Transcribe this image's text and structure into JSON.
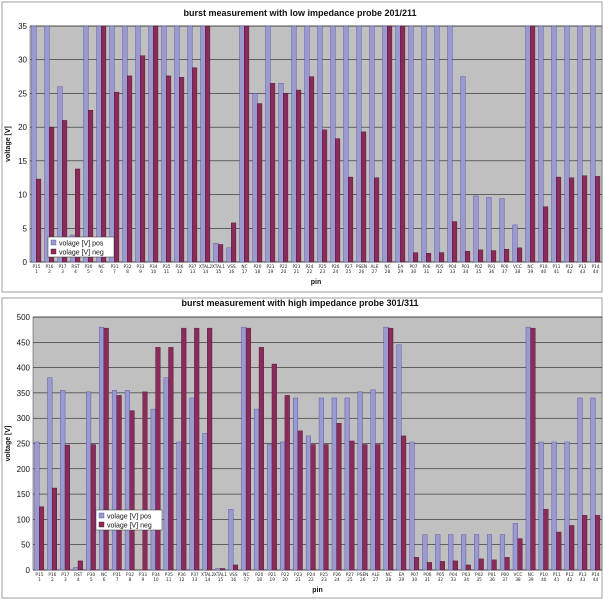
{
  "colors": {
    "pos": "#9a9ad0",
    "pos_edge": "#4a4a98",
    "neg": "#8a2c5a",
    "neg_edge": "#4a1030",
    "plot_bg": "#c0c0c0",
    "grid": "#000000"
  },
  "chart_data": [
    {
      "type": "bar",
      "title": "burst measurement with low impedance probe  201/211",
      "xlabel": "pin",
      "ylabel": "voltage [V]",
      "ylim": [
        0,
        35
      ],
      "yticks": [
        0,
        5,
        10,
        15,
        20,
        25,
        30,
        35
      ],
      "grid": true,
      "legend_position": "bottom-left",
      "categories": [
        [
          "P15",
          "1"
        ],
        [
          "P16",
          "2"
        ],
        [
          "P17",
          "3"
        ],
        [
          "RST",
          "4"
        ],
        [
          "P30",
          "5"
        ],
        [
          "NC",
          "6"
        ],
        [
          "P31",
          "7"
        ],
        [
          "P32",
          "8"
        ],
        [
          "P33",
          "9"
        ],
        [
          "P34",
          "10"
        ],
        [
          "P35",
          "11"
        ],
        [
          "P36",
          "12"
        ],
        [
          "P37",
          "13"
        ],
        [
          "XTAL2",
          "14"
        ],
        [
          "XTAL1",
          "15"
        ],
        [
          "VSS",
          "16"
        ],
        [
          "NC",
          "17"
        ],
        [
          "P20",
          "18"
        ],
        [
          "P21",
          "19"
        ],
        [
          "P22",
          "20"
        ],
        [
          "P23",
          "21"
        ],
        [
          "P24",
          "22"
        ],
        [
          "P25",
          "23"
        ],
        [
          "P26",
          "24"
        ],
        [
          "P27",
          "25"
        ],
        [
          "PSEN",
          "26"
        ],
        [
          "ALE",
          "27"
        ],
        [
          "NC",
          "28"
        ],
        [
          "EA",
          "29"
        ],
        [
          "P07",
          "30"
        ],
        [
          "P06",
          "31"
        ],
        [
          "P05",
          "32"
        ],
        [
          "P04",
          "33"
        ],
        [
          "P03",
          "34"
        ],
        [
          "P02",
          "35"
        ],
        [
          "P01",
          "36"
        ],
        [
          "P00",
          "37"
        ],
        [
          "VCC",
          "38"
        ],
        [
          "NC",
          "39"
        ],
        [
          "P10",
          "40"
        ],
        [
          "P11",
          "41"
        ],
        [
          "P12",
          "42"
        ],
        [
          "P13",
          "43"
        ],
        [
          "P14",
          "44"
        ]
      ],
      "series": [
        {
          "name": "volage [V] pos",
          "values": [
            36,
            36,
            26,
            4,
            36,
            36,
            36,
            36,
            36,
            36,
            36,
            36,
            36,
            36,
            2.8,
            2.1,
            36,
            25,
            36,
            26.5,
            36,
            36,
            36,
            36,
            36,
            36,
            36,
            36,
            36,
            36,
            36,
            36,
            36,
            27.5,
            9.8,
            9.6,
            9.4,
            5.5,
            36,
            36,
            36,
            36,
            36,
            36
          ]
        },
        {
          "name": "volage [V] neg",
          "values": [
            12.3,
            20,
            21,
            13.8,
            22.5,
            36,
            25.2,
            27.6,
            30.6,
            35.3,
            27.6,
            27.4,
            28.8,
            36,
            2.6,
            5.8,
            36,
            23.5,
            26.5,
            25,
            25.5,
            27.5,
            19.6,
            18.3,
            12.6,
            19.3,
            12.5,
            36,
            36,
            1.4,
            1.3,
            1.4,
            6,
            1.6,
            1.8,
            1.7,
            1.9,
            2.1,
            36,
            8.2,
            12.6,
            12.5,
            12.8,
            12.7
          ]
        }
      ]
    },
    {
      "type": "bar",
      "title": "burst measurement with high impedance probe  301/311",
      "xlabel": "pin",
      "ylabel": "voltage [V]",
      "ylim": [
        0,
        500
      ],
      "yticks": [
        0,
        50,
        100,
        150,
        200,
        250,
        300,
        350,
        400,
        450,
        500
      ],
      "grid": true,
      "legend_position": "bottom-left",
      "categories": [
        [
          "P15",
          "1"
        ],
        [
          "P16",
          "2"
        ],
        [
          "P17",
          "3"
        ],
        [
          "RST",
          "4"
        ],
        [
          "P30",
          "5"
        ],
        [
          "NC",
          "6"
        ],
        [
          "P31",
          "7"
        ],
        [
          "P32",
          "8"
        ],
        [
          "P33",
          "9"
        ],
        [
          "P34",
          "10"
        ],
        [
          "P35",
          "11"
        ],
        [
          "P36",
          "12"
        ],
        [
          "P37",
          "13"
        ],
        [
          "XTAL2",
          "14"
        ],
        [
          "XTAL1",
          "15"
        ],
        [
          "VSS",
          "16"
        ],
        [
          "NC",
          "17"
        ],
        [
          "P20",
          "18"
        ],
        [
          "P21",
          "19"
        ],
        [
          "P22",
          "20"
        ],
        [
          "P23",
          "21"
        ],
        [
          "P24",
          "22"
        ],
        [
          "P25",
          "23"
        ],
        [
          "P26",
          "24"
        ],
        [
          "P27",
          "25"
        ],
        [
          "PSEN",
          "26"
        ],
        [
          "ALE",
          "27"
        ],
        [
          "NC",
          "28"
        ],
        [
          "EA",
          "29"
        ],
        [
          "P07",
          "30"
        ],
        [
          "P06",
          "31"
        ],
        [
          "P05",
          "32"
        ],
        [
          "P04",
          "33"
        ],
        [
          "P03",
          "34"
        ],
        [
          "P02",
          "35"
        ],
        [
          "P01",
          "36"
        ],
        [
          "P00",
          "37"
        ],
        [
          "VCC",
          "38"
        ],
        [
          "NC",
          "39"
        ],
        [
          "P10",
          "40"
        ],
        [
          "P11",
          "41"
        ],
        [
          "P12",
          "42"
        ],
        [
          "P13",
          "43"
        ],
        [
          "P14",
          "44"
        ]
      ],
      "series": [
        {
          "name": "volage [V] pos",
          "values": [
            253,
            380,
            355,
            5,
            352,
            480,
            355,
            355,
            0,
            318,
            380,
            253,
            340,
            270,
            3,
            120,
            480,
            318,
            248,
            253,
            340,
            265,
            340,
            340,
            340,
            352,
            356,
            480,
            445,
            253,
            70,
            70,
            70,
            70,
            70,
            70,
            70,
            92,
            480,
            253,
            253,
            253,
            340,
            340
          ]
        },
        {
          "name": "volage [V] neg",
          "values": [
            125,
            162,
            247,
            18,
            248,
            478,
            345,
            315,
            352,
            440,
            440,
            478,
            478,
            478,
            3,
            10,
            478,
            440,
            407,
            345,
            275,
            248,
            248,
            290,
            255,
            248,
            248,
            478,
            265,
            25,
            15,
            17,
            18,
            10,
            22,
            20,
            25,
            62,
            478,
            120,
            75,
            88,
            108,
            108
          ]
        }
      ]
    }
  ]
}
